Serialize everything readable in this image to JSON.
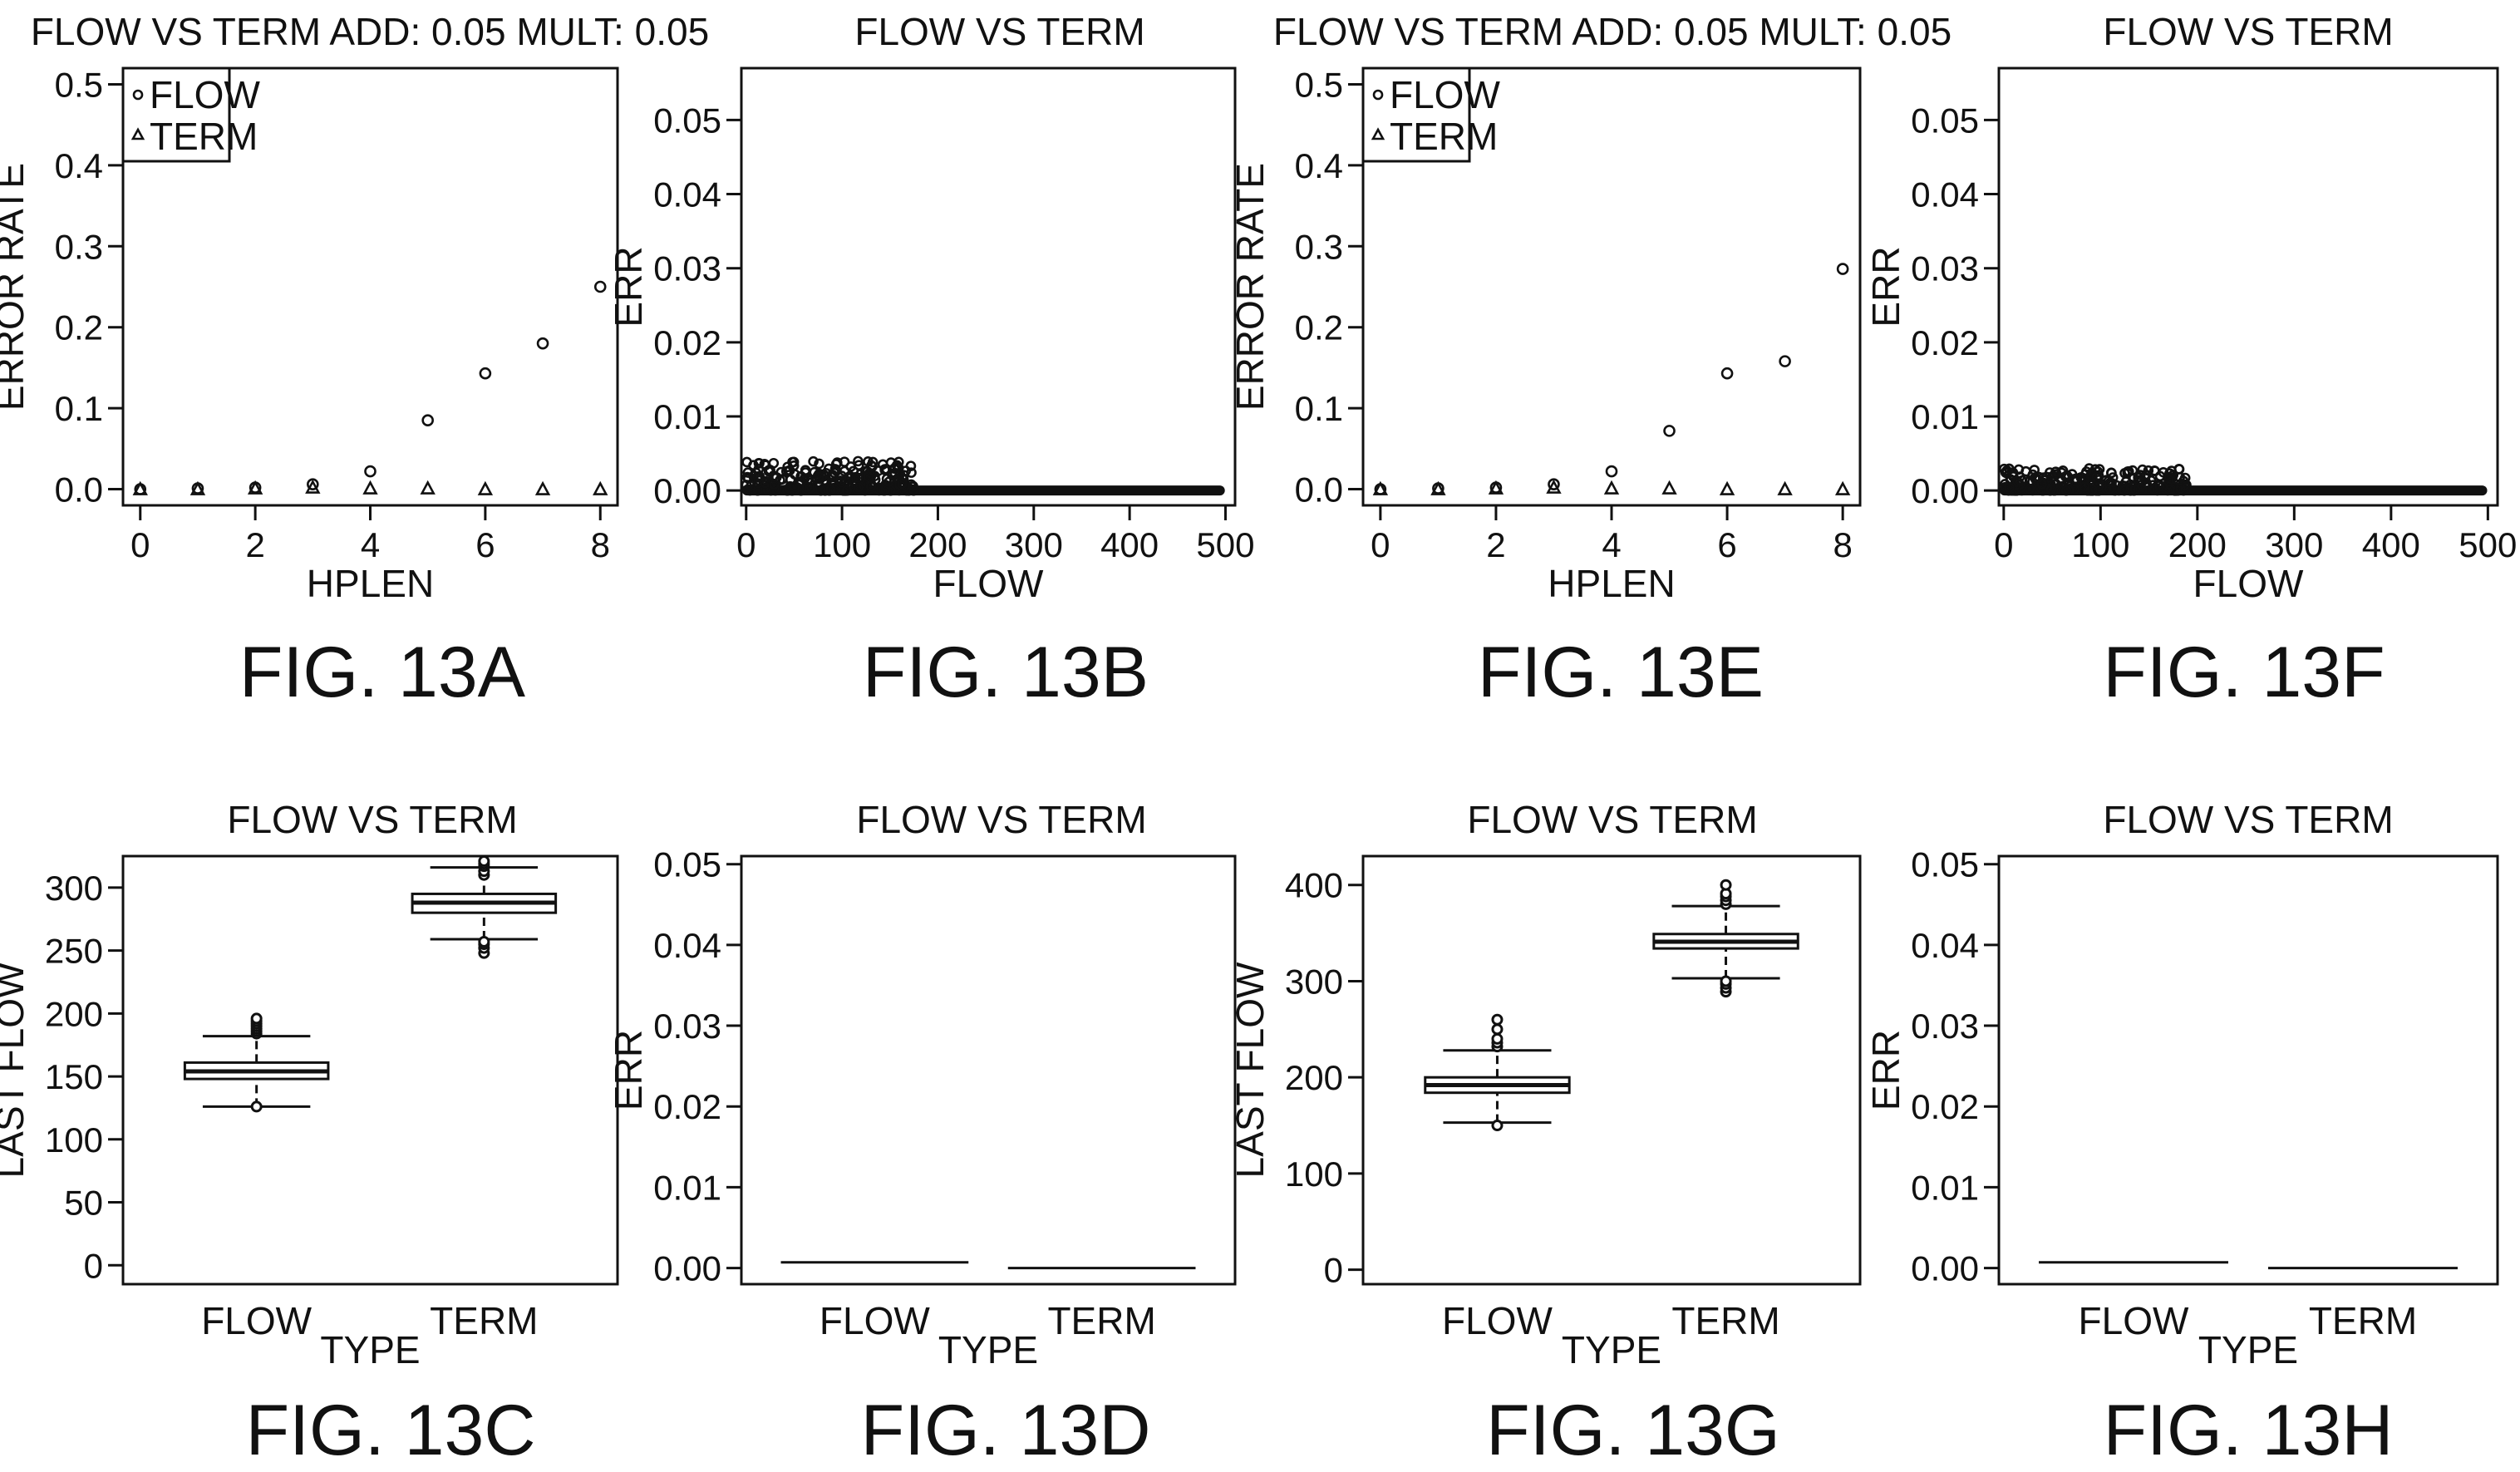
{
  "chart_data": [
    {
      "id": "13A",
      "type": "scatter",
      "caption": "FIG. 13A",
      "title": "FLOW VS TERM ADD: 0.05 MULT: 0.05",
      "xlabel": "HPLEN",
      "ylabel": "ERROR RATE",
      "xlim": [
        -0.3,
        8.3
      ],
      "ylim": [
        -0.02,
        0.52
      ],
      "xticks": [
        "0",
        "2",
        "4",
        "6",
        "8"
      ],
      "yticks": [
        "0.0",
        "0.1",
        "0.2",
        "0.3",
        "0.4",
        "0.5"
      ],
      "legend": {
        "position": "top-left",
        "entries": [
          "FLOW",
          "TERM"
        ]
      },
      "series": [
        {
          "name": "FLOW",
          "marker": "circle",
          "x": [
            0,
            1,
            2,
            3,
            4,
            5,
            6,
            7,
            8
          ],
          "y": [
            0.0,
            0.001,
            0.002,
            0.006,
            0.022,
            0.085,
            0.143,
            0.18,
            0.25
          ]
        },
        {
          "name": "TERM",
          "marker": "triangle",
          "x": [
            0,
            1,
            2,
            3,
            4,
            5,
            6,
            7,
            8
          ],
          "y": [
            0.0,
            0.0,
            0.001,
            0.002,
            0.001,
            0.001,
            0.0,
            0.0,
            0.0
          ]
        }
      ]
    },
    {
      "id": "13B",
      "type": "scatter",
      "caption": "FIG. 13B",
      "title": "FLOW VS TERM",
      "xlabel": "FLOW",
      "ylabel": "ERR",
      "xlim": [
        -5,
        510
      ],
      "ylim": [
        -0.002,
        0.057
      ],
      "xticks": [
        "0",
        "100",
        "200",
        "300",
        "400",
        "500"
      ],
      "yticks": [
        "0.00",
        "0.01",
        "0.02",
        "0.03",
        "0.04",
        "0.05"
      ],
      "dense_points": {
        "x_from": 0,
        "x_to": 495,
        "noise_until": 175,
        "noise_max": 0.004
      }
    },
    {
      "id": "13E",
      "type": "scatter",
      "caption": "FIG. 13E",
      "title": "FLOW VS TERM ADD: 0.05 MULT: 0.05",
      "xlabel": "HPLEN",
      "ylabel": "ERROR RATE",
      "xlim": [
        -0.3,
        8.3
      ],
      "ylim": [
        -0.02,
        0.52
      ],
      "xticks": [
        "0",
        "2",
        "4",
        "6",
        "8"
      ],
      "yticks": [
        "0.0",
        "0.1",
        "0.2",
        "0.3",
        "0.4",
        "0.5"
      ],
      "legend": {
        "position": "top-left",
        "entries": [
          "FLOW",
          "TERM"
        ]
      },
      "series": [
        {
          "name": "FLOW",
          "marker": "circle",
          "x": [
            0,
            1,
            2,
            3,
            4,
            5,
            6,
            7,
            8
          ],
          "y": [
            0.0,
            0.001,
            0.002,
            0.006,
            0.022,
            0.072,
            0.143,
            0.158,
            0.272
          ]
        },
        {
          "name": "TERM",
          "marker": "triangle",
          "x": [
            0,
            1,
            2,
            3,
            4,
            5,
            6,
            7,
            8
          ],
          "y": [
            0.0,
            0.0,
            0.001,
            0.002,
            0.001,
            0.001,
            0.0,
            0.0,
            0.0
          ]
        }
      ]
    },
    {
      "id": "13F",
      "type": "scatter",
      "caption": "FIG. 13F",
      "title": "FLOW VS TERM",
      "xlabel": "FLOW",
      "ylabel": "ERR",
      "xlim": [
        -5,
        510
      ],
      "ylim": [
        -0.002,
        0.057
      ],
      "xticks": [
        "0",
        "100",
        "200",
        "300",
        "400",
        "500"
      ],
      "yticks": [
        "0.00",
        "0.01",
        "0.02",
        "0.03",
        "0.04",
        "0.05"
      ],
      "dense_points": {
        "x_from": 0,
        "x_to": 495,
        "noise_until": 190,
        "noise_max": 0.003
      }
    },
    {
      "id": "13C",
      "type": "box",
      "caption": "FIG. 13C",
      "title": "FLOW VS TERM",
      "xlabel": "TYPE",
      "ylabel": "LAST FLOW",
      "ylim": [
        -15,
        325
      ],
      "categories": [
        "FLOW",
        "TERM"
      ],
      "yticks": [
        "0",
        "50",
        "100",
        "150",
        "200",
        "250",
        "300"
      ],
      "boxes": [
        {
          "name": "FLOW",
          "q1": 148,
          "median": 154,
          "q3": 161,
          "whisker_low": 126,
          "whisker_high": 182,
          "outliers": [
            126,
            184,
            186,
            188,
            190,
            192,
            194,
            196
          ]
        },
        {
          "name": "TERM",
          "q1": 280,
          "median": 288,
          "q3": 295,
          "whisker_low": 259,
          "whisker_high": 316,
          "outliers": [
            248,
            252,
            255,
            257,
            310,
            313,
            317,
            319,
            321
          ]
        }
      ]
    },
    {
      "id": "13D",
      "type": "box",
      "caption": "FIG. 13D",
      "title": "FLOW VS TERM",
      "xlabel": "TYPE",
      "ylabel": "ERR",
      "ylim": [
        -0.002,
        0.051
      ],
      "categories": [
        "FLOW",
        "TERM"
      ],
      "yticks": [
        "0.00",
        "0.01",
        "0.02",
        "0.03",
        "0.04",
        "0.05"
      ],
      "flat_values": [
        0.0007,
        0.0
      ]
    },
    {
      "id": "13G",
      "type": "box",
      "caption": "FIG. 13G",
      "title": "FLOW VS TERM",
      "xlabel": "TYPE",
      "ylabel": "LAST FLOW",
      "ylim": [
        -15,
        430
      ],
      "categories": [
        "FLOW",
        "TERM"
      ],
      "yticks": [
        "0",
        "100",
        "200",
        "300",
        "400"
      ],
      "boxes": [
        {
          "name": "FLOW",
          "q1": 184,
          "median": 192,
          "q3": 200,
          "whisker_low": 153,
          "whisker_high": 228,
          "outliers": [
            150,
            232,
            236,
            240,
            250,
            260
          ]
        },
        {
          "name": "TERM",
          "q1": 334,
          "median": 341,
          "q3": 349,
          "whisker_low": 303,
          "whisker_high": 378,
          "outliers": [
            289,
            293,
            297,
            300,
            380,
            384,
            388,
            391,
            400
          ]
        }
      ]
    },
    {
      "id": "13H",
      "type": "box",
      "caption": "FIG. 13H",
      "title": "FLOW VS TERM",
      "xlabel": "TYPE",
      "ylabel": "ERR",
      "ylim": [
        -0.002,
        0.051
      ],
      "categories": [
        "FLOW",
        "TERM"
      ],
      "yticks": [
        "0.00",
        "0.01",
        "0.02",
        "0.03",
        "0.04",
        "0.05"
      ],
      "flat_values": [
        0.0007,
        0.0
      ]
    }
  ]
}
